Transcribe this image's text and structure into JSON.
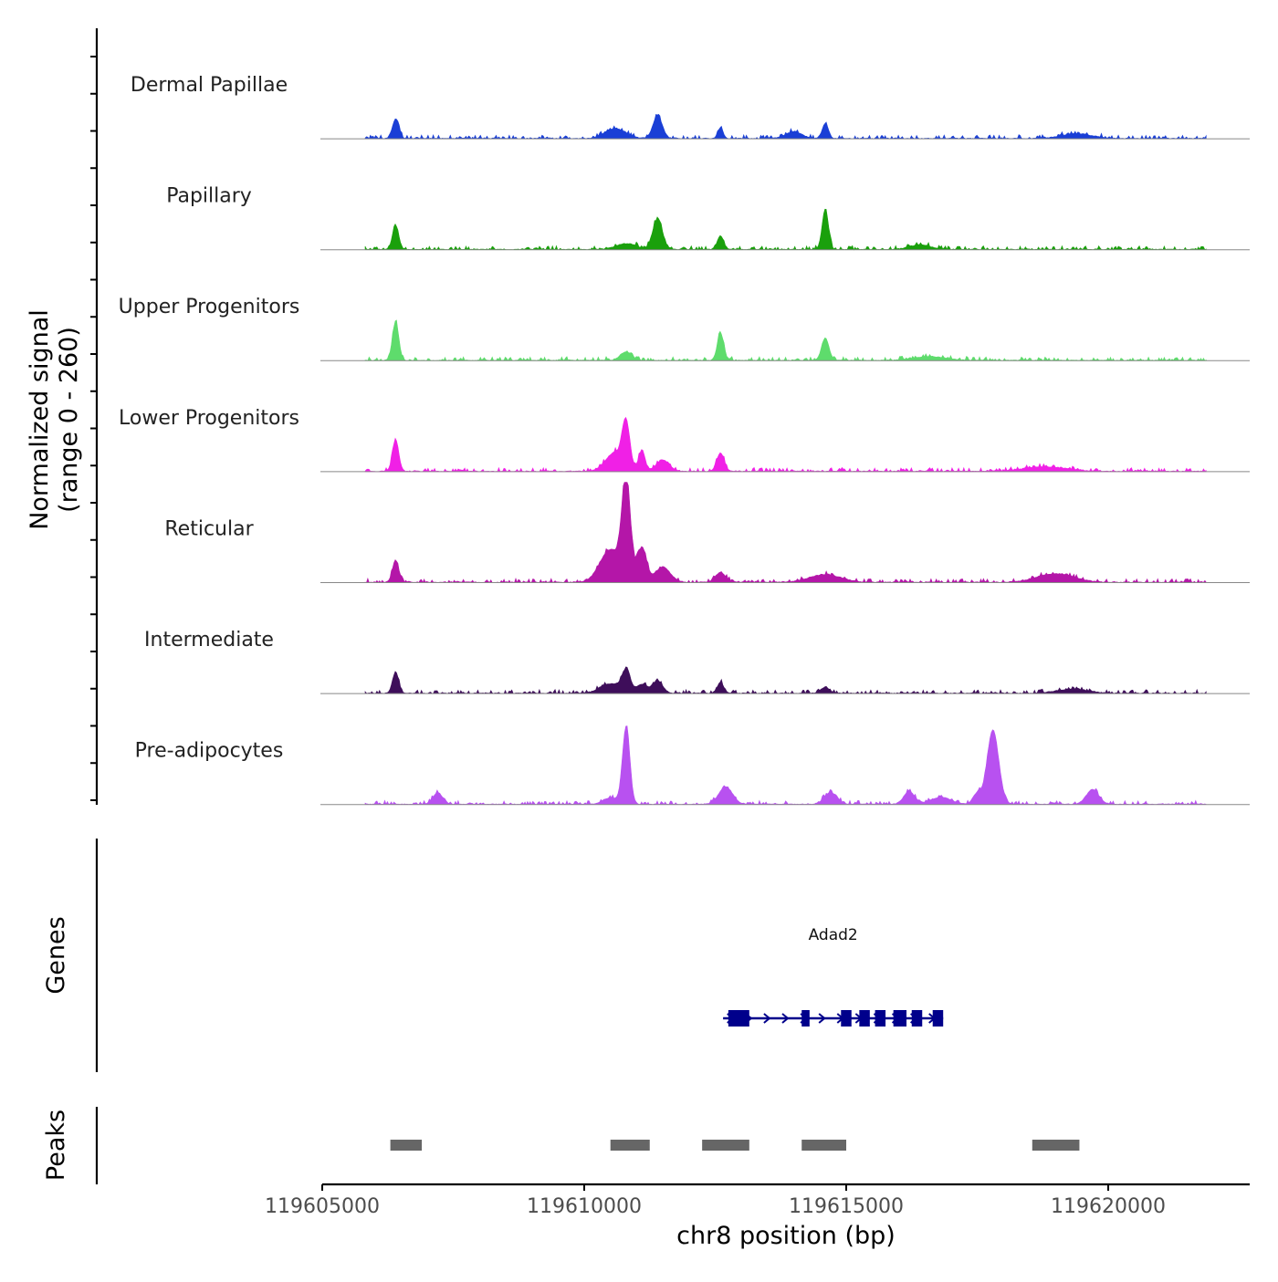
{
  "chart_data": {
    "type": "area",
    "title": "",
    "chromosome": "chr8",
    "xlabel": "chr8 position (bp)",
    "xlim": [
      119605000,
      119622700
    ],
    "xticks": [
      119605000,
      119610000,
      119615000,
      119620000
    ],
    "xtick_labels": [
      "119605000",
      "119610000",
      "119615000",
      "119620000"
    ],
    "signal_ylabel_line1": "Normalized signal",
    "signal_ylabel_line2": "(range 0 - 260)",
    "signal_range": [
      0,
      260
    ],
    "genes_label": "Genes",
    "peaks_label": "Peaks",
    "series": [
      {
        "name": "Dermal Papillae",
        "color": "#1a3fd6",
        "peaks": [
          [
            119606400,
            50,
            60
          ],
          [
            119610600,
            25,
            200
          ],
          [
            119611400,
            58,
            90
          ],
          [
            119612600,
            28,
            50
          ],
          [
            119614000,
            18,
            150
          ],
          [
            119614600,
            38,
            60
          ],
          [
            119619400,
            12,
            300
          ]
        ]
      },
      {
        "name": "Papillary",
        "color": "#1aa00c",
        "peaks": [
          [
            119606400,
            62,
            60
          ],
          [
            119610800,
            15,
            200
          ],
          [
            119611400,
            80,
            90
          ],
          [
            119612600,
            35,
            60
          ],
          [
            119614600,
            105,
            60
          ],
          [
            119616400,
            12,
            200
          ]
        ]
      },
      {
        "name": "Upper Progenitors",
        "color": "#5edc6c",
        "peaks": [
          [
            119606400,
            100,
            60
          ],
          [
            119610800,
            22,
            110
          ],
          [
            119612600,
            72,
            60
          ],
          [
            119614600,
            58,
            70
          ],
          [
            119616600,
            10,
            300
          ]
        ]
      },
      {
        "name": "Lower Progenitors",
        "color": "#f020e6",
        "peaks": [
          [
            119606400,
            82,
            60
          ],
          [
            119610600,
            50,
            180
          ],
          [
            119610800,
            110,
            70
          ],
          [
            119611100,
            55,
            60
          ],
          [
            119611500,
            30,
            120
          ],
          [
            119612600,
            48,
            70
          ],
          [
            119618800,
            12,
            400
          ]
        ]
      },
      {
        "name": "Reticular",
        "color": "#b416a8",
        "peaks": [
          [
            119606400,
            58,
            60
          ],
          [
            119610500,
            85,
            200
          ],
          [
            119610800,
            260,
            80
          ],
          [
            119611100,
            90,
            90
          ],
          [
            119611500,
            40,
            140
          ],
          [
            119612600,
            25,
            100
          ],
          [
            119614600,
            20,
            300
          ],
          [
            119619000,
            22,
            350
          ]
        ]
      },
      {
        "name": "Intermediate",
        "color": "#3e0e5a",
        "peaks": [
          [
            119606400,
            55,
            60
          ],
          [
            119610500,
            25,
            200
          ],
          [
            119610800,
            55,
            80
          ],
          [
            119611100,
            22,
            100
          ],
          [
            119611400,
            32,
            100
          ],
          [
            119612600,
            28,
            60
          ],
          [
            119614600,
            16,
            80
          ],
          [
            119619300,
            10,
            300
          ]
        ]
      },
      {
        "name": "Pre-adipocytes",
        "color": "#b851f0",
        "peaks": [
          [
            119607200,
            30,
            90
          ],
          [
            119610800,
            200,
            70
          ],
          [
            119610500,
            16,
            150
          ],
          [
            119612700,
            45,
            130
          ],
          [
            119614700,
            30,
            120
          ],
          [
            119616200,
            34,
            100
          ],
          [
            119617800,
            193,
            110
          ],
          [
            119617500,
            28,
            80
          ],
          [
            119619700,
            38,
            120
          ],
          [
            119616800,
            18,
            200
          ]
        ]
      }
    ],
    "genes": [
      {
        "name": "Adad2",
        "start": 119612650,
        "end": 119616850,
        "strand": "+",
        "color": "#00008b",
        "exons": [
          [
            119612750,
            119613150
          ],
          [
            119614150,
            119614300
          ],
          [
            119614900,
            119615100
          ],
          [
            119615250,
            119615450
          ],
          [
            119615550,
            119615750
          ],
          [
            119615900,
            119616150
          ],
          [
            119616250,
            119616450
          ],
          [
            119616650,
            119616850
          ]
        ]
      }
    ],
    "peaks": [
      [
        119606300,
        119606900
      ],
      [
        119610500,
        119611250
      ],
      [
        119612250,
        119613150
      ],
      [
        119614150,
        119615000
      ],
      [
        119618550,
        119619450
      ]
    ]
  }
}
